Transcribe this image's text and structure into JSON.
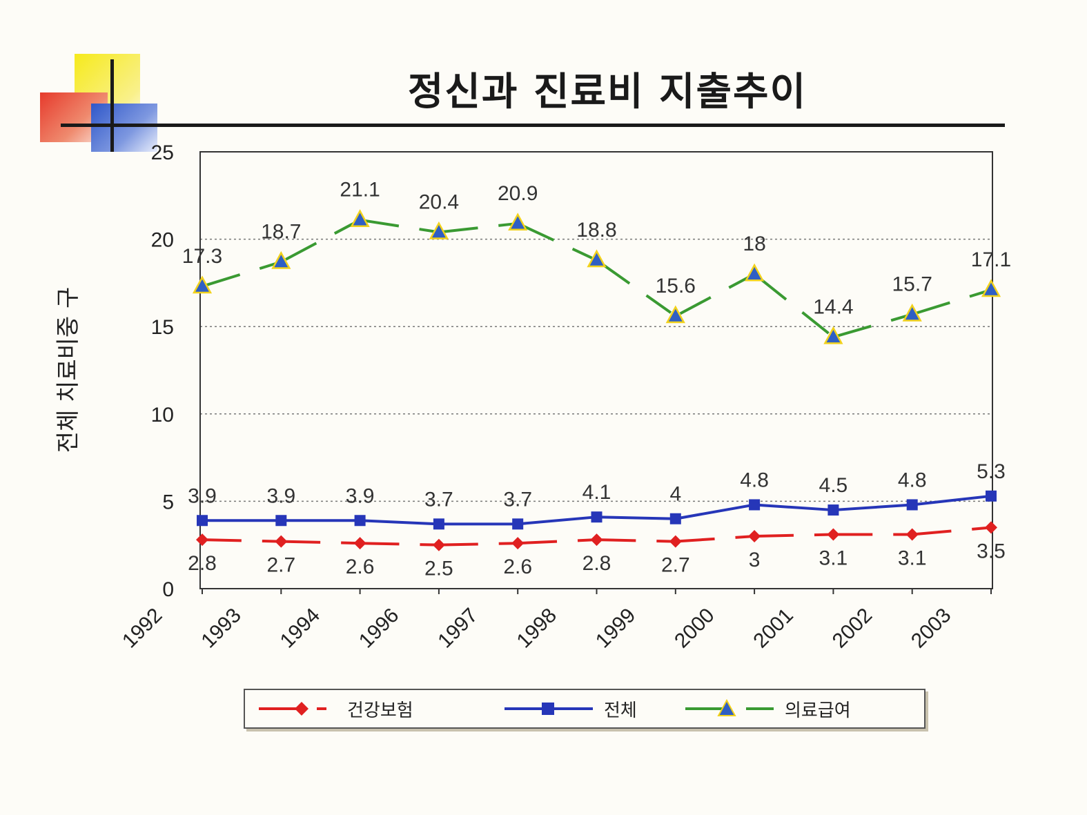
{
  "header": {
    "title": "정신과 진료비 지출추이"
  },
  "colors": {
    "health_insurance": "#e02020",
    "total": "#2636b8",
    "medical_aid": "#3a9a32",
    "triangle_fill": "#2f5fc4",
    "triangle_edge": "#f2d21c"
  },
  "chart_data": {
    "type": "line",
    "title": "정신과 진료비 지출추이",
    "xlabel": "",
    "ylabel": "전체 치료비중 구",
    "categories": [
      "1992",
      "1993",
      "1994",
      "1996",
      "1997",
      "1998",
      "1999",
      "2000",
      "2001",
      "2002",
      "2003"
    ],
    "ylim": [
      0,
      25
    ],
    "yticks": [
      0,
      5,
      10,
      15,
      20,
      25
    ],
    "grid": "dotted horizontal at 5, 10, 15, 20",
    "legend_position": "bottom",
    "series": [
      {
        "name": "건강보험",
        "marker": "diamond",
        "line": "dashed",
        "color": "#e02020",
        "values": [
          2.8,
          2.7,
          2.6,
          2.5,
          2.6,
          2.8,
          2.7,
          3,
          3.1,
          3.1,
          3.5
        ],
        "labels": [
          "2.8",
          "2.7",
          "2.6",
          "2.5",
          "2.6",
          "2.8",
          "2.7",
          "3",
          "3.1",
          "3.1",
          "3.5"
        ]
      },
      {
        "name": "전체",
        "marker": "square",
        "line": "solid",
        "color": "#2636b8",
        "values": [
          3.9,
          3.9,
          3.9,
          3.7,
          3.7,
          4.1,
          4,
          4.8,
          4.5,
          4.8,
          5.3
        ],
        "labels": [
          "3.9",
          "3.9",
          "3.9",
          "3.7",
          "3.7",
          "4.1",
          "4",
          "4.8",
          "4.5",
          "4.8",
          "5.3"
        ]
      },
      {
        "name": "의료급여",
        "marker": "triangle",
        "line": "dashed",
        "color": "#3a9a32",
        "values": [
          17.3,
          18.7,
          21.1,
          20.4,
          20.9,
          18.8,
          15.6,
          18,
          14.4,
          15.7,
          17.1
        ],
        "labels": [
          "17.3",
          "18.7",
          "21.1",
          "20.4",
          "20.9",
          "18.8",
          "15.6",
          "18",
          "14.4",
          "15.7",
          "17.1"
        ]
      }
    ]
  }
}
